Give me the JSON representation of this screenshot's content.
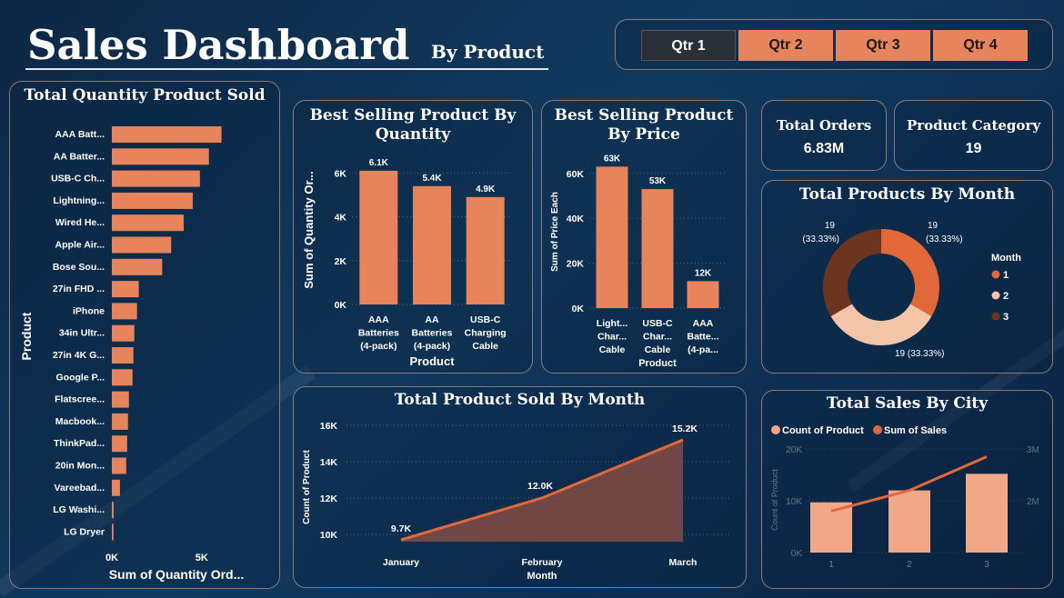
{
  "header": {
    "title": "Sales Dashboard",
    "subtitle": "By Product"
  },
  "quarters": [
    {
      "label": "Qtr 1",
      "active": true
    },
    {
      "label": "Qtr 2",
      "active": false
    },
    {
      "label": "Qtr 3",
      "active": false
    },
    {
      "label": "Qtr 4",
      "active": false
    }
  ],
  "kpis": {
    "orders": {
      "label": "Total Orders",
      "value": "6.83M"
    },
    "category": {
      "label": "Product Category",
      "value": "19"
    }
  },
  "colors": {
    "bar": "#e8845b",
    "donut": [
      "#e2683a",
      "#f4c4a9",
      "#6b3520"
    ],
    "line": "#e2683a",
    "area": "#7b4a45",
    "city_bar": "#f0a888"
  },
  "chart_data": [
    {
      "id": "qty_by_product",
      "type": "bar",
      "orientation": "horizontal",
      "title": "Total Quantity Product Sold",
      "xlabel": "Sum of Quantity Ord...",
      "ylabel": "Product",
      "categories": [
        "AAA Batt...",
        "AA Batter...",
        "USB-C Ch...",
        "Lightning...",
        "Wired He...",
        "Apple Air...",
        "Bose Sou...",
        "27in FHD ...",
        "iPhone",
        "34in Ultr...",
        "27in 4K G...",
        "Google P...",
        "Flatscree...",
        "Macbook...",
        "ThinkPad...",
        "20in Mon...",
        "Vareebad...",
        "LG Washi...",
        "LG Dryer"
      ],
      "values": [
        6100,
        5400,
        4900,
        4500,
        4000,
        3300,
        2800,
        1500,
        1400,
        1250,
        1200,
        1150,
        950,
        900,
        850,
        800,
        450,
        100,
        90
      ],
      "xticks": [
        {
          "v": 0,
          "label": "0K"
        },
        {
          "v": 5000,
          "label": "5K"
        }
      ],
      "xlim": [
        0,
        8500
      ]
    },
    {
      "id": "best_qty",
      "type": "bar",
      "title": "Best Selling Product By Quantity",
      "xlabel": "Product",
      "ylabel": "Sum of Quantity Or...",
      "categories": [
        [
          "AAA",
          "Batteries",
          "(4-pack)"
        ],
        [
          "AA",
          "Batteries",
          "(4-pack)"
        ],
        [
          "USB-C",
          "Charging",
          "Cable"
        ]
      ],
      "values": [
        6100,
        5400,
        4900
      ],
      "data_labels": [
        "6.1K",
        "5.4K",
        "4.9K"
      ],
      "yticks": [
        {
          "v": 0,
          "label": "0K"
        },
        {
          "v": 2000,
          "label": "2K"
        },
        {
          "v": 4000,
          "label": "4K"
        },
        {
          "v": 6000,
          "label": "6K"
        }
      ],
      "ylim": [
        0,
        6800
      ]
    },
    {
      "id": "best_price",
      "type": "bar",
      "title": "Best Selling Product By Price",
      "xlabel": "Product",
      "ylabel": "Sum of Price Each",
      "categories": [
        [
          "Light...",
          "Char...",
          "Cable"
        ],
        [
          "USB-C",
          "Char...",
          "Cable"
        ],
        [
          "AAA",
          "Batte...",
          "(4-pa..."
        ]
      ],
      "values": [
        63000,
        53000,
        12000
      ],
      "data_labels": [
        "63K",
        "53K",
        "12K"
      ],
      "yticks": [
        {
          "v": 0,
          "label": "0K"
        },
        {
          "v": 20000,
          "label": "20K"
        },
        {
          "v": 40000,
          "label": "40K"
        },
        {
          "v": 60000,
          "label": "60K"
        }
      ],
      "ylim": [
        0,
        68000
      ]
    },
    {
      "id": "products_by_month",
      "type": "pie",
      "title": "Total Products By Month",
      "legend_title": "Month",
      "labels": [
        "1",
        "2",
        "3"
      ],
      "values": [
        19,
        19,
        19
      ],
      "slice_labels": [
        "19 (33.33%)",
        "19 (33.33%)",
        "19 (33.33%)"
      ]
    },
    {
      "id": "sold_by_month",
      "type": "area",
      "title": "Total Product Sold By Month",
      "xlabel": "Month",
      "ylabel": "Count of Product",
      "categories": [
        "January",
        "February",
        "March"
      ],
      "values": [
        9700,
        12000,
        15200
      ],
      "data_labels": [
        "9.7K",
        "12.0K",
        "15.2K"
      ],
      "yticks": [
        {
          "v": 10000,
          "label": "10K"
        },
        {
          "v": 12000,
          "label": "12K"
        },
        {
          "v": 14000,
          "label": "14K"
        },
        {
          "v": 16000,
          "label": "16K"
        }
      ],
      "ylim": [
        9600,
        16200
      ]
    },
    {
      "id": "sales_by_city",
      "type": "bar",
      "title": "Total Sales By City",
      "ylabel": "Count of Product",
      "legend": [
        "Count of Product",
        "Sum of Sales"
      ],
      "categories": [
        "1",
        "2",
        "3"
      ],
      "series": [
        {
          "name": "Count of Product",
          "values": [
            9700,
            12000,
            15200
          ],
          "yticks": [
            {
              "v": 0,
              "label": "0K"
            },
            {
              "v": 10000,
              "label": "10K"
            },
            {
              "v": 20000,
              "label": "20K"
            }
          ],
          "ylim": [
            0,
            20000
          ]
        },
        {
          "name": "Sum of Sales",
          "values": [
            1800000,
            2200000,
            2850000
          ],
          "yticks": [
            {
              "v": 2000000,
              "label": "2M"
            },
            {
              "v": 3000000,
              "label": "3M"
            }
          ],
          "ylim": [
            1000000,
            3000000
          ]
        }
      ]
    }
  ]
}
